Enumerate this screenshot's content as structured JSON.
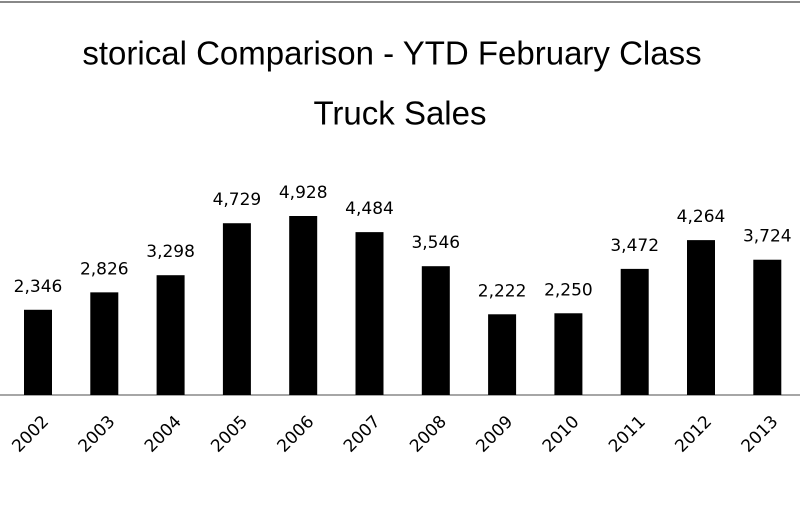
{
  "chart_data": {
    "type": "bar",
    "title": [
      "storical Comparison - YTD February Class",
      "Truck Sales"
    ],
    "categories": [
      "2002",
      "2003",
      "2004",
      "2005",
      "2006",
      "2007",
      "2008",
      "2009",
      "2010",
      "2011",
      "2012",
      "2013"
    ],
    "values": [
      2346,
      2826,
      3298,
      4729,
      4928,
      4484,
      3546,
      2222,
      2250,
      3472,
      4264,
      3724
    ],
    "value_labels": [
      "2,346",
      "2,826",
      "3,298",
      "4,729",
      "4,928",
      "4,484",
      "3,546",
      "2,222",
      "2,250",
      "3,472",
      "4,264",
      "3,724"
    ],
    "color": "#000000"
  }
}
